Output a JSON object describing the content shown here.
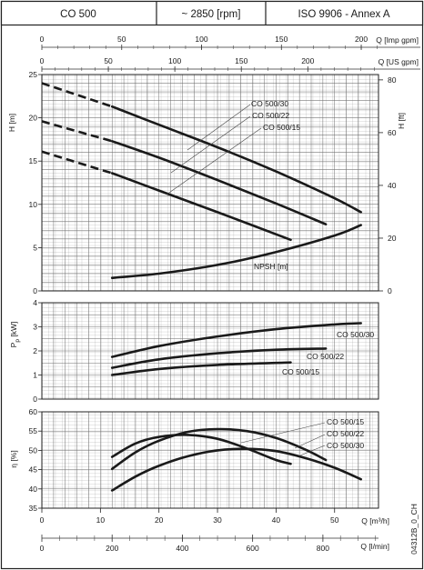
{
  "header": {
    "model": "CO 500",
    "speed": "~ 2850 [rpm]",
    "standard": "ISO 9906 - Annex A"
  },
  "footer_code": "04312B_0_CH",
  "chart_data": [
    {
      "type": "line",
      "panel": "head",
      "ylabel": "H [m]",
      "ylabel_right": "H [ft]",
      "ylim": [
        0,
        25
      ],
      "yticks": [
        0,
        5,
        10,
        15,
        20,
        25
      ],
      "ylim_right": [
        0,
        82.02
      ],
      "yticks_right": [
        0,
        20,
        40,
        60,
        80
      ],
      "xlim_m3h": [
        0,
        57.5
      ],
      "top_axis_imp": {
        "label": "Q [Imp gpm]",
        "ticks": [
          0,
          50,
          100,
          150,
          200
        ]
      },
      "top_axis_us": {
        "label": "Q [US gpm]",
        "ticks": [
          0,
          50,
          100,
          150,
          200
        ]
      },
      "series": [
        {
          "name": "CO 500/30",
          "dashed_x": [
            0,
            12
          ],
          "dashed_y": [
            24.0,
            21.3
          ],
          "x": [
            12,
            20,
            30,
            40,
            50,
            54.5
          ],
          "y": [
            21.3,
            19.2,
            16.6,
            13.8,
            10.7,
            9.1
          ]
        },
        {
          "name": "CO 500/22",
          "dashed_x": [
            0,
            12
          ],
          "dashed_y": [
            19.6,
            17.3
          ],
          "x": [
            12,
            20,
            30,
            40,
            48.5
          ],
          "y": [
            17.3,
            15.4,
            12.8,
            10.1,
            7.7
          ]
        },
        {
          "name": "CO 500/15",
          "dashed_x": [
            0,
            12
          ],
          "dashed_y": [
            16.1,
            13.6
          ],
          "x": [
            12,
            20,
            30,
            42.5
          ],
          "y": [
            13.6,
            11.6,
            9.1,
            5.9
          ]
        },
        {
          "name": "NPSH [m]",
          "x": [
            12,
            20,
            30,
            40,
            50,
            54.5
          ],
          "y": [
            1.5,
            2.0,
            3.0,
            4.5,
            6.4,
            7.6
          ]
        }
      ]
    },
    {
      "type": "line",
      "panel": "power",
      "ylabel": "P [kW]",
      "ylabel_sub": "p",
      "ylim": [
        0,
        4
      ],
      "yticks": [
        0,
        1,
        2,
        3,
        4
      ],
      "series": [
        {
          "name": "CO 500/30",
          "x": [
            12,
            20,
            30,
            40,
            50,
            54.5
          ],
          "y": [
            1.75,
            2.2,
            2.6,
            2.9,
            3.1,
            3.15
          ]
        },
        {
          "name": "CO 500/22",
          "x": [
            12,
            20,
            30,
            40,
            48.5
          ],
          "y": [
            1.3,
            1.65,
            1.9,
            2.05,
            2.1
          ]
        },
        {
          "name": "CO 500/15",
          "x": [
            12,
            20,
            30,
            42.5
          ],
          "y": [
            1.0,
            1.25,
            1.42,
            1.52
          ]
        }
      ]
    },
    {
      "type": "line",
      "panel": "efficiency",
      "ylabel": "η [%]",
      "xlabel": "Q [m³/h]",
      "xlabel2": "Q [l/min]",
      "ylim": [
        35,
        60
      ],
      "yticks": [
        35,
        40,
        45,
        50,
        55,
        60
      ],
      "xticks_m3h": [
        0,
        10,
        20,
        30,
        40,
        50
      ],
      "xticks_lmin": [
        0,
        200,
        400,
        600,
        800
      ],
      "series": [
        {
          "name": "CO 500/15",
          "x": [
            12,
            16,
            20,
            25,
            30,
            35,
            40,
            42.5
          ],
          "y": [
            48.3,
            51.8,
            53.5,
            54.0,
            53.0,
            50.5,
            47.5,
            46.5
          ]
        },
        {
          "name": "CO 500/22",
          "x": [
            12,
            16,
            20,
            25,
            30,
            35,
            40,
            45,
            48.5
          ],
          "y": [
            45.2,
            49.5,
            52.5,
            54.8,
            55.5,
            55.0,
            53.2,
            50.2,
            47.5
          ]
        },
        {
          "name": "CO 500/30",
          "x": [
            12,
            16,
            20,
            25,
            30,
            35,
            40,
            45,
            50,
            54.5
          ],
          "y": [
            39.6,
            43.2,
            46.0,
            48.5,
            50.0,
            50.4,
            49.8,
            48.0,
            45.5,
            42.5
          ]
        }
      ]
    }
  ]
}
